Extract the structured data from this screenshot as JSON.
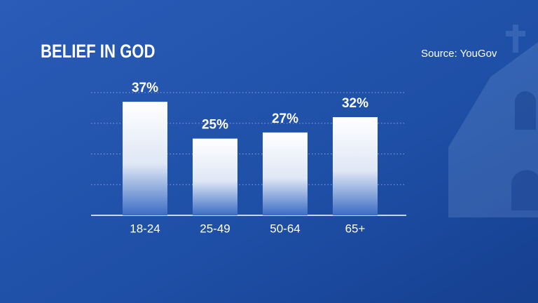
{
  "chart_data": {
    "type": "bar",
    "title": "BELIEF IN GOD",
    "subtitle": "Source: YouGov",
    "categories": [
      "18-24",
      "25-49",
      "50-64",
      "65+"
    ],
    "values": [
      37,
      25,
      27,
      32
    ],
    "value_labels": [
      "37%",
      "25%",
      "27%",
      "32%"
    ],
    "color": "#ffffff",
    "ylim": [
      0,
      40
    ],
    "yticks": [
      0,
      10,
      20,
      30,
      40
    ],
    "grid": true
  }
}
